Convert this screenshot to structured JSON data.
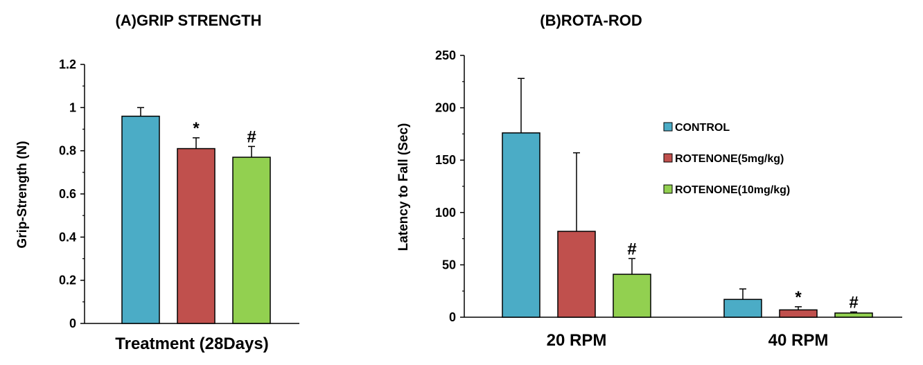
{
  "chart_data": [
    {
      "panel": "A",
      "type": "bar",
      "title": "(A)GRIP STRENGTH",
      "xlabel": "Treatment (28Days)",
      "ylabel": "Grip-Strength (N)",
      "ylim": [
        0,
        1.2
      ],
      "yticks": [
        "0",
        "0.2",
        "0.4",
        "0.6",
        "0.8",
        "1",
        "1.2"
      ],
      "ytick_values": [
        0,
        0.2,
        0.4,
        0.6,
        0.8,
        1.0,
        1.2
      ],
      "grid": false,
      "series": [
        {
          "name": "CONTROL",
          "color": "#4BACC6",
          "value": 0.96,
          "error": 0.04,
          "annotation": ""
        },
        {
          "name": "ROTENONE(5mg/kg)",
          "color": "#C0504D",
          "value": 0.81,
          "error": 0.05,
          "annotation": "*"
        },
        {
          "name": "ROTENONE(10mg/kg)",
          "color": "#92D050",
          "value": 0.77,
          "error": 0.05,
          "annotation": "#"
        }
      ]
    },
    {
      "panel": "B",
      "type": "bar",
      "title": "(B)ROTA-ROD",
      "xlabel": "",
      "ylabel": "Latency to Fall (Sec)",
      "ylim": [
        0,
        250
      ],
      "yticks": [
        "0",
        "50",
        "100",
        "150",
        "200",
        "250"
      ],
      "ytick_values": [
        0,
        50,
        100,
        150,
        200,
        250
      ],
      "grid": false,
      "legend_position": "right",
      "categories": [
        "20 RPM",
        "40 RPM"
      ],
      "series": [
        {
          "name": "CONTROL",
          "color": "#4BACC6",
          "values": [
            176,
            17
          ],
          "errors": [
            52,
            10
          ],
          "annotations": [
            "",
            ""
          ]
        },
        {
          "name": "ROTENONE(5mg/kg)",
          "color": "#C0504D",
          "values": [
            82,
            7
          ],
          "errors": [
            75,
            3
          ],
          "annotations": [
            "",
            "*"
          ]
        },
        {
          "name": "ROTENONE(10mg/kg)",
          "color": "#92D050",
          "values": [
            41,
            4
          ],
          "errors": [
            15,
            1
          ],
          "annotations": [
            "#",
            "#"
          ]
        }
      ]
    }
  ]
}
